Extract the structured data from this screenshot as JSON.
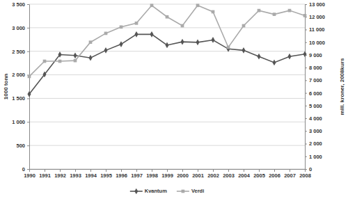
{
  "chart_data": {
    "type": "line",
    "y_label": "1000 tonn",
    "y2_label": "mill. kroner, 2008kurs",
    "x": [
      1990,
      1991,
      1992,
      1993,
      1994,
      1995,
      1996,
      1997,
      1998,
      1999,
      2000,
      2001,
      2002,
      2003,
      2004,
      2005,
      2006,
      2007,
      2008
    ],
    "xlim": [
      1990,
      2008
    ],
    "xticks": [
      1990,
      1991,
      1992,
      1993,
      1994,
      1995,
      1996,
      1997,
      1998,
      1999,
      2000,
      2001,
      2002,
      2003,
      2004,
      2005,
      2006,
      2007,
      2008
    ],
    "ylim": [
      0,
      3500
    ],
    "yticks": [
      0,
      500,
      {
        "value": 1000,
        "label": "1 000"
      },
      {
        "value": 1500,
        "label": "1 500"
      },
      {
        "value": 2000,
        "label": "2 000"
      },
      {
        "value": 2500,
        "label": "2 500"
      },
      {
        "value": 3000,
        "label": "3 000"
      },
      {
        "value": 3500,
        "label": "3 500"
      }
    ],
    "y2lim": [
      0,
      13000
    ],
    "y2ticks": [
      0,
      {
        "value": 1000,
        "label": "1 000"
      },
      {
        "value": 2000,
        "label": "2 000"
      },
      {
        "value": 3000,
        "label": "3 000"
      },
      {
        "value": 4000,
        "label": "4 000"
      },
      {
        "value": 5000,
        "label": "5 000"
      },
      {
        "value": 6000,
        "label": "6 000"
      },
      {
        "value": 7000,
        "label": "7 000"
      },
      {
        "value": 8000,
        "label": "8 000"
      },
      {
        "value": 9000,
        "label": "9 000"
      },
      {
        "value": 10000,
        "label": "10 000"
      },
      {
        "value": 11000,
        "label": "11 000"
      },
      {
        "value": 12000,
        "label": "12 000"
      },
      {
        "value": 13000,
        "label": "13 000"
      }
    ],
    "grid": true,
    "legend": "bottom",
    "series": [
      {
        "name": "Kvantum",
        "color": "#555555",
        "marker": "diamond",
        "line_style": "solid",
        "values": [
          1590,
          2010,
          2430,
          2410,
          2360,
          2520,
          2650,
          2860,
          2860,
          2630,
          2700,
          2690,
          2740,
          2550,
          2520,
          2390,
          2260,
          2390,
          2440
        ]
      },
      {
        "name": "Verdi",
        "color": "#aaaaaa",
        "marker": "square",
        "line_style": "solid",
        "axis": "y2",
        "values": [
          7300,
          8500,
          8500,
          8550,
          10000,
          10700,
          11200,
          11500,
          12900,
          12000,
          11300,
          12900,
          12400,
          9600,
          11300,
          12500,
          12200,
          12500,
          12100
        ]
      }
    ]
  }
}
